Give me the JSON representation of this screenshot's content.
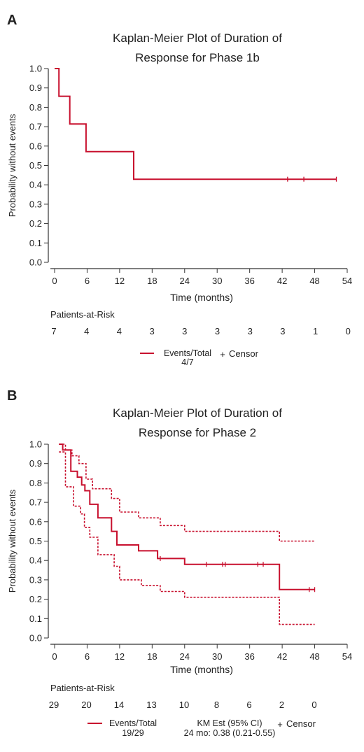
{
  "colors": {
    "km": "#c8102e",
    "axis": "#333333",
    "text": "#222222"
  },
  "chart_data": [
    {
      "panel": "A",
      "type": "line",
      "title": [
        "Kaplan-Meier Plot of Duration of",
        "Response for Phase 1b"
      ],
      "xlabel": "Time (months)",
      "ylabel": "Probability without events",
      "xlim": [
        0,
        54
      ],
      "ylim": [
        0,
        1
      ],
      "x_ticks": [
        0,
        6,
        12,
        18,
        24,
        30,
        36,
        42,
        48,
        54
      ],
      "y_ticks": [
        "0.0",
        "0.1",
        "0.2",
        "0.3",
        "0.4",
        "0.5",
        "0.6",
        "0.7",
        "0.8",
        "0.9",
        "1.0"
      ],
      "grid": false,
      "series": [
        {
          "role": "estimate",
          "style": "solid",
          "x": [
            0,
            0.8,
            0.8,
            2.8,
            2.8,
            5.8,
            5.8,
            14.6,
            14.6,
            52
          ],
          "y": [
            1.0,
            1.0,
            0.857,
            0.857,
            0.714,
            0.714,
            0.571,
            0.571,
            0.429,
            0.429
          ],
          "censor_x": [
            43,
            46,
            52
          ],
          "censor_y": [
            0.429,
            0.429,
            0.429
          ]
        }
      ],
      "risk_label": "Patients-at-Risk",
      "risk_counts": [
        "7",
        "4",
        "4",
        "3",
        "3",
        "3",
        "3",
        "3",
        "1",
        "0"
      ],
      "legend": {
        "events_label": "Events/Total",
        "events_value": "4/7",
        "km_label": "",
        "km_value": "",
        "censor_label": "Censor"
      }
    },
    {
      "panel": "B",
      "type": "line",
      "title": [
        "Kaplan-Meier Plot of Duration of",
        "Response for Phase 2"
      ],
      "xlabel": "Time (months)",
      "ylabel": "Probability without events",
      "xlim": [
        0,
        54
      ],
      "ylim": [
        0,
        1
      ],
      "x_ticks": [
        0,
        6,
        12,
        18,
        24,
        30,
        36,
        42,
        48,
        54
      ],
      "y_ticks": [
        "0.0",
        "0.1",
        "0.2",
        "0.3",
        "0.4",
        "0.5",
        "0.6",
        "0.7",
        "0.8",
        "0.9",
        "1.0"
      ],
      "grid": false,
      "series": [
        {
          "role": "estimate",
          "style": "solid",
          "x": [
            0.8,
            1.5,
            1.5,
            3.0,
            3.0,
            4.2,
            4.2,
            5.0,
            5.0,
            5.6,
            5.6,
            6.5,
            6.5,
            8.0,
            8.0,
            10.5,
            10.5,
            11.5,
            11.5,
            15.5,
            15.5,
            19.0,
            19.0,
            24.0,
            24.0,
            41.5,
            41.5,
            48.0
          ],
          "y": [
            1.0,
            1.0,
            0.97,
            0.97,
            0.86,
            0.86,
            0.83,
            0.83,
            0.79,
            0.79,
            0.76,
            0.76,
            0.69,
            0.69,
            0.62,
            0.62,
            0.55,
            0.55,
            0.48,
            0.48,
            0.45,
            0.45,
            0.41,
            0.41,
            0.38,
            0.38,
            0.25,
            0.25
          ],
          "censor_x": [
            19.5,
            28.0,
            31.0,
            31.5,
            37.5,
            38.5,
            47.0,
            48.0
          ],
          "censor_y": [
            0.41,
            0.38,
            0.38,
            0.38,
            0.38,
            0.38,
            0.25,
            0.25
          ]
        },
        {
          "role": "upper-ci",
          "style": "dashed",
          "x": [
            0.8,
            2.0,
            2.0,
            3.2,
            3.2,
            4.5,
            4.5,
            5.8,
            5.8,
            7.0,
            7.0,
            10.5,
            10.5,
            12.0,
            12.0,
            15.5,
            15.5,
            19.5,
            19.5,
            24.0,
            24.0,
            41.5,
            41.5,
            48.0
          ],
          "y": [
            1.0,
            1.0,
            0.97,
            0.97,
            0.94,
            0.94,
            0.9,
            0.9,
            0.82,
            0.82,
            0.77,
            0.77,
            0.72,
            0.72,
            0.65,
            0.65,
            0.62,
            0.62,
            0.58,
            0.58,
            0.55,
            0.55,
            0.5,
            0.5
          ]
        },
        {
          "role": "lower-ci",
          "style": "dashed",
          "x": [
            0.8,
            2.0,
            2.0,
            3.5,
            3.5,
            4.8,
            4.8,
            5.5,
            5.5,
            6.5,
            6.5,
            8.0,
            8.0,
            11.0,
            11.0,
            12.0,
            12.0,
            16.0,
            16.0,
            19.5,
            19.5,
            24.0,
            24.0,
            41.5,
            41.5,
            48.0
          ],
          "y": [
            0.96,
            0.96,
            0.78,
            0.78,
            0.68,
            0.68,
            0.64,
            0.64,
            0.57,
            0.57,
            0.52,
            0.52,
            0.43,
            0.43,
            0.37,
            0.37,
            0.3,
            0.3,
            0.27,
            0.27,
            0.24,
            0.24,
            0.21,
            0.21,
            0.07,
            0.07
          ]
        }
      ],
      "risk_label": "Patients-at-Risk",
      "risk_counts": [
        "29",
        "20",
        "14",
        "13",
        "10",
        "8",
        "6",
        "2",
        "0"
      ],
      "legend": {
        "events_label": "Events/Total",
        "events_value": "19/29",
        "km_label": "KM Est (95% CI)",
        "km_value": "24 mo: 0.38 (0.21-0.55)",
        "censor_label": "Censor"
      }
    }
  ]
}
